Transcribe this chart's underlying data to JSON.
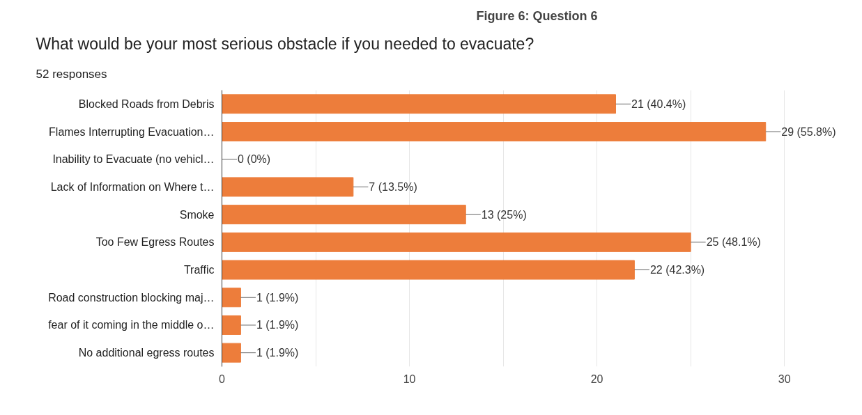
{
  "chart_data": {
    "type": "bar",
    "orientation": "horizontal",
    "title": "What would be your most serious obstacle if you needed to evacuate?",
    "subtitle": "52 responses",
    "annotations": [
      "Figure 6: Question 6"
    ],
    "categories": [
      "Blocked Roads from Debris",
      "Flames Interrupting Evacuation…",
      "Inability to Evacuate (no vehicl…",
      "Lack of Information on Where t…",
      "Smoke",
      "Too Few Egress Routes",
      "Traffic",
      "Road construction blocking maj…",
      "fear of it coming in the middle o…",
      "No additional egress routes"
    ],
    "values": [
      21,
      29,
      0,
      7,
      13,
      25,
      22,
      1,
      1,
      1
    ],
    "value_labels": [
      "21 (40.4%)",
      "29 (55.8%)",
      "0 (0%)",
      "7 (13.5%)",
      "13 (25%)",
      "25 (48.1%)",
      "22 (42.3%)",
      "1 (1.9%)",
      "1 (1.9%)",
      "1 (1.9%)"
    ],
    "color": "#ed7d3b",
    "xlim": [
      0,
      30
    ],
    "xticks": [
      0,
      {
        "value": 5,
        "label": null
      },
      10,
      {
        "value": 15,
        "label": null
      },
      20,
      {
        "value": 25,
        "label": null
      },
      30
    ],
    "grid": "x"
  }
}
